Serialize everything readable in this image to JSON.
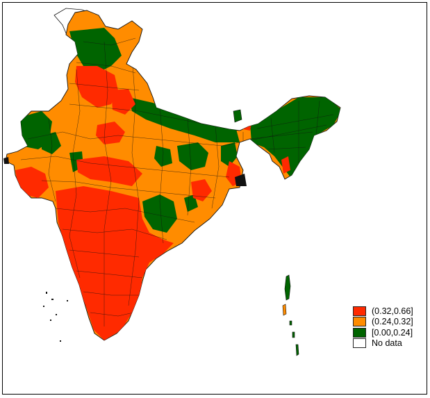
{
  "colors": {
    "high": "#ff2a00",
    "mid": "#ff8c00",
    "low": "#006400",
    "none": "#ffffff",
    "border": "#111111"
  },
  "legend": {
    "items": [
      {
        "label": "(0.32,0.66]",
        "color": "#ff2a00"
      },
      {
        "label": "(0.24,0.32]",
        "color": "#ff8c00"
      },
      {
        "label": "[0.00,0.24]",
        "color": "#006400"
      },
      {
        "label": "No data",
        "color": "#ffffff"
      }
    ]
  }
}
